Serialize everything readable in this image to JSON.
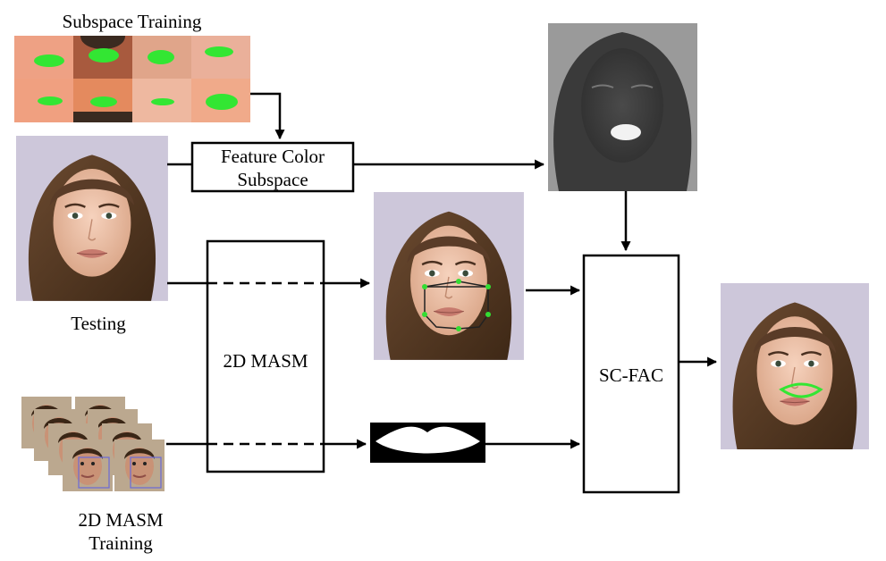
{
  "labels": {
    "subspace_training": "Subspace Training",
    "feature_color_subspace": [
      "Feature Color",
      "Subspace"
    ],
    "testing": "Testing",
    "masm_box": "2D MASM",
    "scfac_box": "SC-FAC",
    "masm_training": [
      "2D MASM",
      "Training"
    ]
  },
  "colors": {
    "lip_highlight": "#33e633",
    "skin_tone": "#e8a07e",
    "hair": "#5a3c28",
    "background_lavender": "#cfc8dc",
    "grayscale_map": "#555555",
    "face_box_blue": "#6a6ad8",
    "line": "#000000"
  },
  "icons": {
    "subspace_training_grid": "mouth-patches-icon",
    "test_face": "face-photo-icon",
    "feature_map": "grayscale-face-map-icon",
    "landmark_face": "face-with-landmarks-icon",
    "lip_mask": "binary-lip-mask-icon",
    "result_face": "face-with-lip-contour-icon",
    "training_stack": "stacked-face-photos-icon"
  }
}
